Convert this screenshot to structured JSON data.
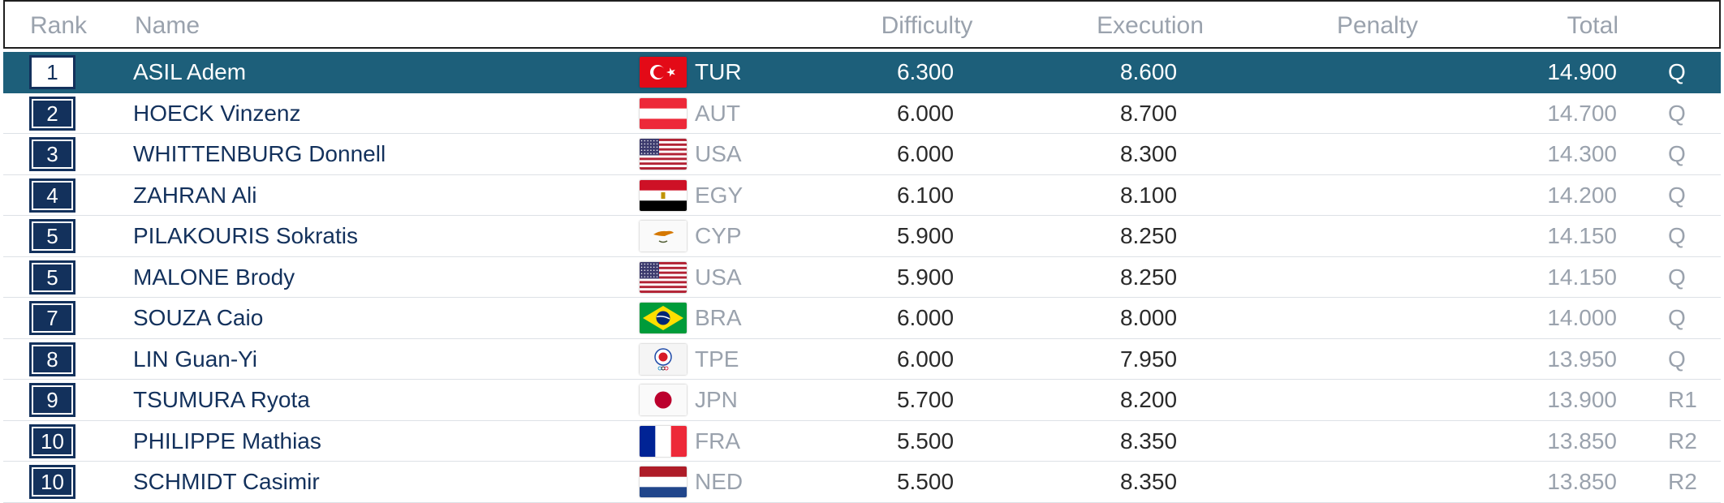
{
  "headers": {
    "rank": "Rank",
    "name": "Name",
    "difficulty": "Difficulty",
    "execution": "Execution",
    "penalty": "Penalty",
    "total": "Total"
  },
  "colors": {
    "selected_row": "#1d5f7a",
    "rank_box": "#13315c",
    "name_text": "#13315c",
    "muted_text": "#9aa2ad"
  },
  "rows": [
    {
      "rank": "1",
      "name": "ASIL Adem",
      "flag": "turkey-flag-icon",
      "noc": "TUR",
      "difficulty": "6.300",
      "execution": "8.600",
      "penalty": "",
      "total": "14.900",
      "qual": "Q",
      "selected": true
    },
    {
      "rank": "2",
      "name": "HOECK Vinzenz",
      "flag": "austria-flag-icon",
      "noc": "AUT",
      "difficulty": "6.000",
      "execution": "8.700",
      "penalty": "",
      "total": "14.700",
      "qual": "Q"
    },
    {
      "rank": "3",
      "name": "WHITTENBURG Donnell",
      "flag": "usa-flag-icon",
      "noc": "USA",
      "difficulty": "6.000",
      "execution": "8.300",
      "penalty": "",
      "total": "14.300",
      "qual": "Q"
    },
    {
      "rank": "4",
      "name": "ZAHRAN Ali",
      "flag": "egypt-flag-icon",
      "noc": "EGY",
      "difficulty": "6.100",
      "execution": "8.100",
      "penalty": "",
      "total": "14.200",
      "qual": "Q"
    },
    {
      "rank": "5",
      "name": "PILAKOURIS Sokratis",
      "flag": "cyprus-flag-icon",
      "noc": "CYP",
      "difficulty": "5.900",
      "execution": "8.250",
      "penalty": "",
      "total": "14.150",
      "qual": "Q"
    },
    {
      "rank": "5",
      "name": "MALONE Brody",
      "flag": "usa-flag-icon",
      "noc": "USA",
      "difficulty": "5.900",
      "execution": "8.250",
      "penalty": "",
      "total": "14.150",
      "qual": "Q"
    },
    {
      "rank": "7",
      "name": "SOUZA Caio",
      "flag": "brazil-flag-icon",
      "noc": "BRA",
      "difficulty": "6.000",
      "execution": "8.000",
      "penalty": "",
      "total": "14.000",
      "qual": "Q"
    },
    {
      "rank": "8",
      "name": "LIN Guan-Yi",
      "flag": "chinese-taipei-flag-icon",
      "noc": "TPE",
      "difficulty": "6.000",
      "execution": "7.950",
      "penalty": "",
      "total": "13.950",
      "qual": "Q"
    },
    {
      "rank": "9",
      "name": "TSUMURA Ryota",
      "flag": "japan-flag-icon",
      "noc": "JPN",
      "difficulty": "5.700",
      "execution": "8.200",
      "penalty": "",
      "total": "13.900",
      "qual": "R1"
    },
    {
      "rank": "10",
      "name": "PHILIPPE Mathias",
      "flag": "france-flag-icon",
      "noc": "FRA",
      "difficulty": "5.500",
      "execution": "8.350",
      "penalty": "",
      "total": "13.850",
      "qual": "R2"
    },
    {
      "rank": "10",
      "name": "SCHMIDT Casimir",
      "flag": "netherlands-flag-icon",
      "noc": "NED",
      "difficulty": "5.500",
      "execution": "8.350",
      "penalty": "",
      "total": "13.850",
      "qual": "R2"
    }
  ]
}
